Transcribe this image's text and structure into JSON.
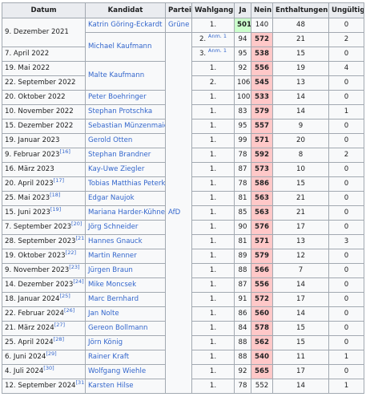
{
  "table": {
    "header": [
      "Datum",
      "Kandidat",
      "Partei",
      "Wahlgang",
      "Ja",
      "Nein",
      "Enthaltungen",
      "Ungültig"
    ],
    "rows": [
      {
        "date": "9. Dezember 2021",
        "candidate": "Katrin Göring-Eckardt",
        "party": "Grüne",
        "round": "1.",
        "yes": 501,
        "no": 140,
        "abstain": 48,
        "invalid": 0,
        "highlight": "yes"
      },
      {
        "candidate": "Michael Kaufmann",
        "party": "AfD",
        "round": "2.",
        "note": "Anm. 1",
        "yes": 94,
        "no": 572,
        "abstain": 21,
        "invalid": 2,
        "highlight": "no"
      },
      {
        "date": "7. April 2022",
        "round": "3.",
        "note": "Anm. 1",
        "yes": 95,
        "no": 538,
        "abstain": 15,
        "invalid": 0,
        "highlight": "no"
      },
      {
        "date": "19. Mai 2022",
        "candidate": "Malte Kaufmann",
        "round": "1.",
        "yes": 92,
        "no": 556,
        "abstain": 19,
        "invalid": 4,
        "highlight": "no"
      },
      {
        "date": "22. September 2022",
        "round": "2.",
        "yes": 106,
        "no": 545,
        "abstain": 13,
        "invalid": 0,
        "highlight": "no"
      },
      {
        "date": "20. Oktober 2022",
        "candidate": "Peter Boehringer",
        "round": "1.",
        "yes": 100,
        "no": 533,
        "abstain": 14,
        "invalid": 0,
        "highlight": "no"
      },
      {
        "date": "10. November 2022",
        "candidate": "Stephan Protschka",
        "round": "1.",
        "yes": 83,
        "no": 579,
        "abstain": 14,
        "invalid": 1,
        "highlight": "no"
      },
      {
        "date": "15. Dezember 2022",
        "candidate": "Sebastian Münzenmaier",
        "round": "1.",
        "yes": 95,
        "no": 557,
        "abstain": 9,
        "invalid": 0,
        "highlight": "no"
      },
      {
        "date": "19. Januar 2023",
        "candidate": "Gerold Otten",
        "round": "1.",
        "yes": 99,
        "no": 571,
        "abstain": 20,
        "invalid": 0,
        "highlight": "no"
      },
      {
        "date": "9. Februar 2023",
        "ref": "[16]",
        "candidate": "Stephan Brandner",
        "round": "1.",
        "yes": 78,
        "no": 592,
        "abstain": 8,
        "invalid": 2,
        "highlight": "no"
      },
      {
        "date": "16. März 2023",
        "candidate": "Kay-Uwe Ziegler",
        "round": "1.",
        "yes": 87,
        "no": 573,
        "abstain": 10,
        "invalid": 0,
        "highlight": "no"
      },
      {
        "date": "20. April 2023",
        "ref": "[17]",
        "candidate": "Tobias Matthias Peterka",
        "round": "1.",
        "yes": 78,
        "no": 586,
        "abstain": 15,
        "invalid": 0,
        "highlight": "no"
      },
      {
        "date": "25. Mai 2023",
        "ref": "[18]",
        "candidate": "Edgar Naujok",
        "round": "1.",
        "yes": 81,
        "no": 563,
        "abstain": 21,
        "invalid": 0,
        "highlight": "no"
      },
      {
        "date": "15. Juni 2023",
        "ref": "[19]",
        "candidate": "Mariana Harder-Kühnel",
        "round": "1.",
        "yes": 85,
        "no": 563,
        "abstain": 21,
        "invalid": 0,
        "highlight": "no"
      },
      {
        "date": "7. September 2023",
        "ref": "[20]",
        "candidate": "Jörg Schneider",
        "round": "1.",
        "yes": 90,
        "no": 576,
        "abstain": 17,
        "invalid": 0,
        "highlight": "no"
      },
      {
        "date": "28. September 2023",
        "ref": "[21]",
        "candidate": "Hannes Gnauck",
        "round": "1.",
        "yes": 81,
        "no": 571,
        "abstain": 13,
        "invalid": 3,
        "highlight": "no"
      },
      {
        "date": "19. Oktober 2023",
        "ref": "[22]",
        "candidate": "Martin Renner",
        "round": "1.",
        "yes": 89,
        "no": 579,
        "abstain": 12,
        "invalid": 0,
        "highlight": "no"
      },
      {
        "date": "9. November 2023",
        "ref": "[23]",
        "candidate": "Jürgen Braun",
        "round": "1.",
        "yes": 88,
        "no": 566,
        "abstain": 7,
        "invalid": 0,
        "highlight": "no"
      },
      {
        "date": "14. Dezember 2023",
        "ref": "[24]",
        "candidate": "Mike Moncsek",
        "round": "1.",
        "yes": 87,
        "no": 556,
        "abstain": 14,
        "invalid": 0,
        "highlight": "no"
      },
      {
        "date": "18. Januar 2024",
        "ref": "[25]",
        "candidate": "Marc Bernhard",
        "round": "1.",
        "yes": 91,
        "no": 572,
        "abstain": 17,
        "invalid": 0,
        "highlight": "no"
      },
      {
        "date": "22. Februar 2024",
        "ref": "[26]",
        "candidate": "Jan Nolte",
        "round": "1.",
        "yes": 86,
        "no": 560,
        "abstain": 14,
        "invalid": 0,
        "highlight": "no"
      },
      {
        "date": "21. März 2024",
        "ref": "[27]",
        "candidate": "Gereon Bollmann",
        "round": "1.",
        "yes": 84,
        "no": 578,
        "abstain": 15,
        "invalid": 0,
        "highlight": "no"
      },
      {
        "date": "25. April 2024",
        "ref": "[28]",
        "candidate": "Jörn König",
        "round": "1.",
        "yes": 88,
        "no": 562,
        "abstain": 15,
        "invalid": 0,
        "highlight": "no"
      },
      {
        "date": "6. Juni 2024",
        "ref": "[29]",
        "candidate": "Rainer Kraft",
        "round": "1.",
        "yes": 88,
        "no": 540,
        "abstain": 11,
        "invalid": 1,
        "highlight": "no"
      },
      {
        "date": "4. Juli 2024",
        "ref": "[30]",
        "candidate": "Wolfgang Wiehle",
        "round": "1.",
        "yes": 92,
        "no": 565,
        "abstain": 17,
        "invalid": 0,
        "highlight": "no"
      },
      {
        "date": "12. September 2024",
        "ref": "[31]",
        "candidate": "Karsten Hilse",
        "round": "1.",
        "yes": 78,
        "no": 552,
        "abstain": 14,
        "invalid": 1
      }
    ]
  }
}
